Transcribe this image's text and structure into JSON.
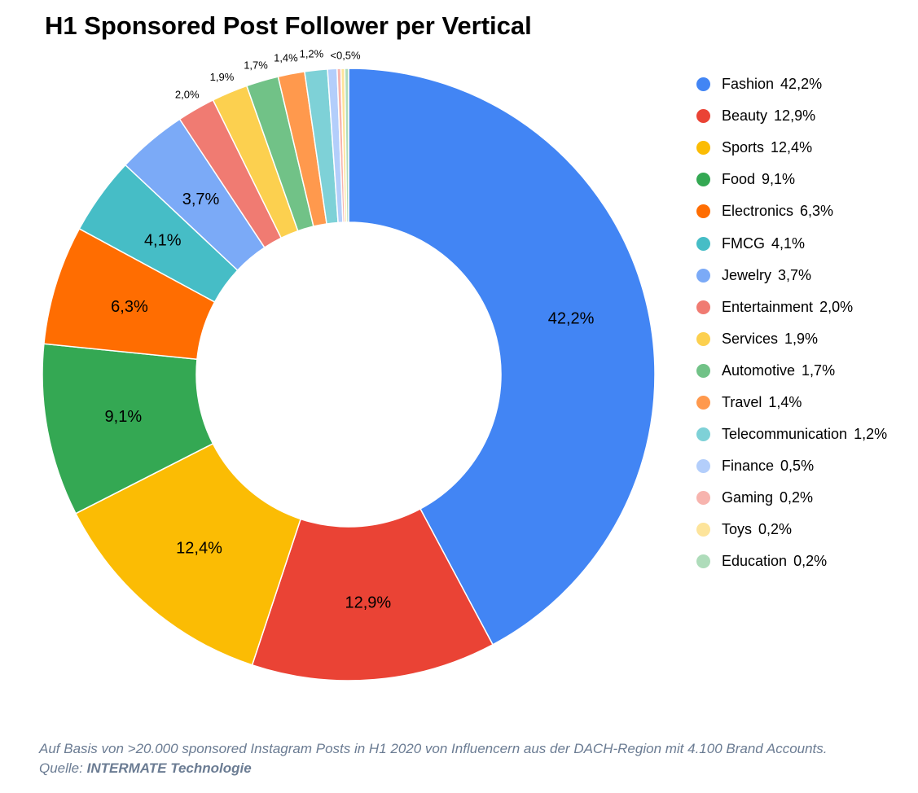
{
  "chart_data": {
    "type": "pie",
    "donut": true,
    "title": "H1 Sponsored Post Follower per Vertical",
    "legend_position": "right",
    "slices": [
      {
        "label": "Fashion",
        "value": 42.2,
        "value_label": "42,2%",
        "color": "#4285F4"
      },
      {
        "label": "Beauty",
        "value": 12.9,
        "value_label": "12,9%",
        "color": "#EA4335"
      },
      {
        "label": "Sports",
        "value": 12.4,
        "value_label": "12,4%",
        "color": "#FBBC04"
      },
      {
        "label": "Food",
        "value": 9.1,
        "value_label": "9,1%",
        "color": "#34A853"
      },
      {
        "label": "Electronics",
        "value": 6.3,
        "value_label": "6,3%",
        "color": "#FF6D01"
      },
      {
        "label": "FMCG",
        "value": 4.1,
        "value_label": "4,1%",
        "color": "#46BDC6"
      },
      {
        "label": "Jewelry",
        "value": 3.7,
        "value_label": "3,7%",
        "color": "#7BAAF7"
      },
      {
        "label": "Entertainment",
        "value": 2.0,
        "value_label": "2,0%",
        "color": "#F07B72"
      },
      {
        "label": "Services",
        "value": 1.9,
        "value_label": "1,9%",
        "color": "#FCD04F"
      },
      {
        "label": "Automotive",
        "value": 1.7,
        "value_label": "1,7%",
        "color": "#71C287"
      },
      {
        "label": "Travel",
        "value": 1.4,
        "value_label": "1,4%",
        "color": "#FF994D"
      },
      {
        "label": "Telecommunication",
        "value": 1.2,
        "value_label": "1,2%",
        "color": "#7ED1D7"
      },
      {
        "label": "Finance",
        "value": 0.5,
        "value_label": "0,5%",
        "color": "#B3CEFB"
      },
      {
        "label": "Gaming",
        "value": 0.2,
        "value_label": "0,2%",
        "color": "#F7B4AE"
      },
      {
        "label": "Toys",
        "value": 0.2,
        "value_label": "0,2%",
        "color": "#FDE49B"
      },
      {
        "label": "Education",
        "value": 0.2,
        "value_label": "0,2%",
        "color": "#AEDCBA"
      }
    ],
    "small_slices_label": "<0,5%"
  },
  "footnote": {
    "text": "Auf Basis von >20.000 sponsored Instagram Posts in H1 2020 von Influencern aus der DACH-Region mit 4.100 Brand Accounts. Quelle: ",
    "source": "INTERMATE Technologie"
  }
}
